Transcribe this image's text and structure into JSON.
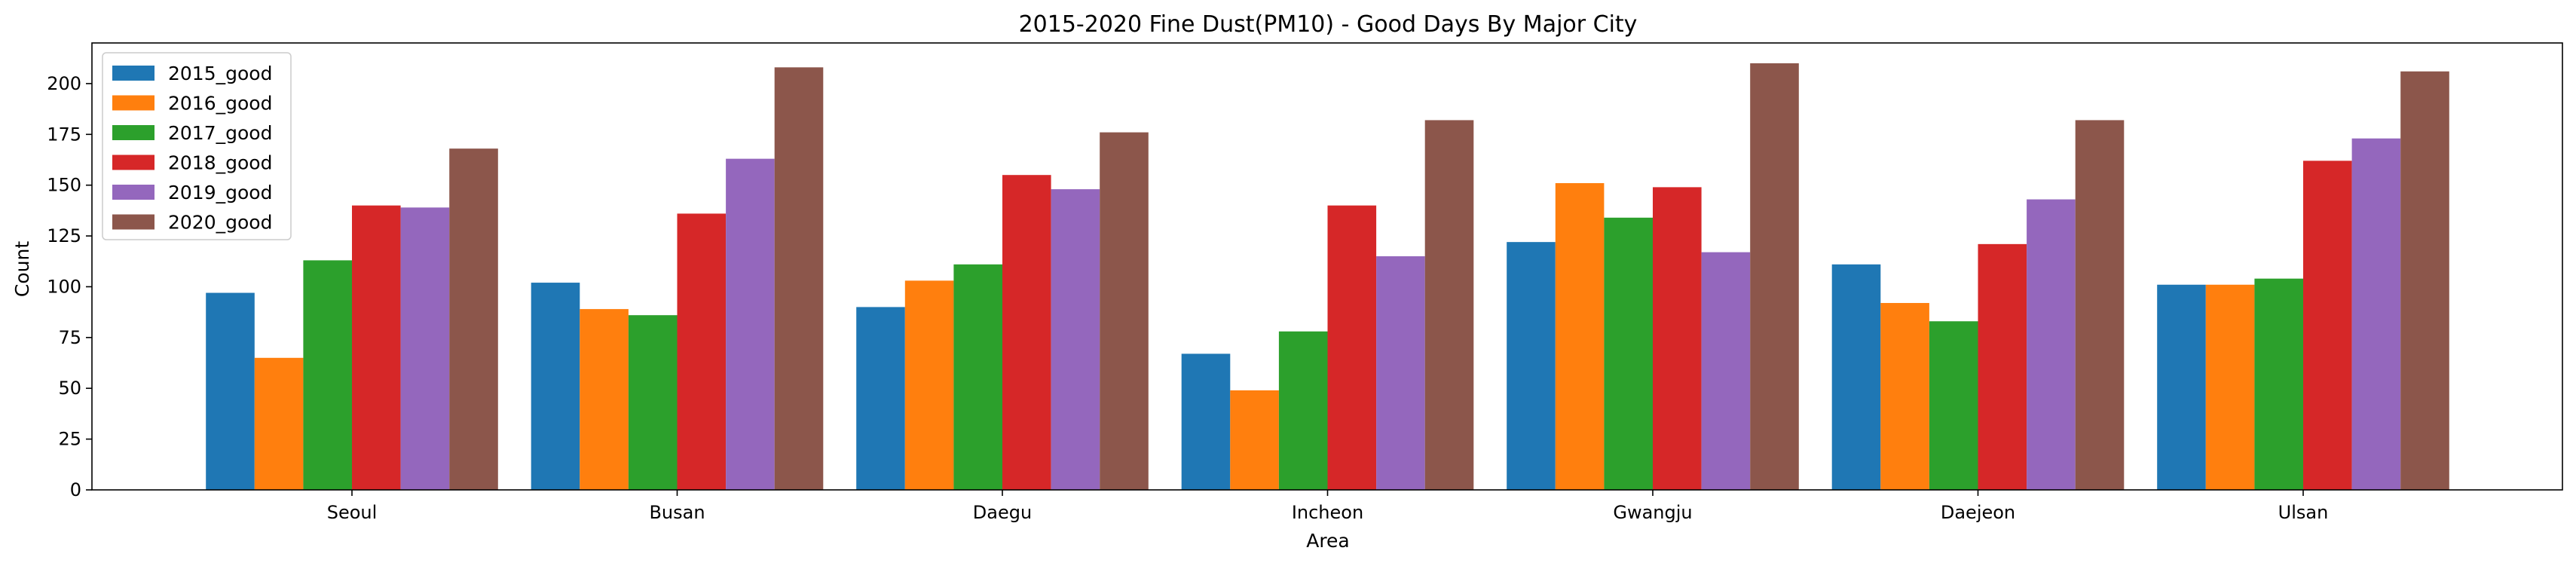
{
  "chart_data": {
    "type": "bar",
    "title": "2015-2020 Fine Dust(PM10) - Good Days By Major City",
    "xlabel": "Area",
    "ylabel": "Count",
    "ylim": [
      0,
      220
    ],
    "yticks": [
      0,
      25,
      50,
      75,
      100,
      125,
      150,
      175,
      200
    ],
    "grid": false,
    "legend_position": "top-left",
    "categories": [
      "Seoul",
      "Busan",
      "Daegu",
      "Incheon",
      "Gwangju",
      "Daejeon",
      "Ulsan"
    ],
    "series": [
      {
        "name": "2015_good",
        "color": "#1f77b4",
        "values": [
          97,
          102,
          90,
          67,
          122,
          111,
          101
        ]
      },
      {
        "name": "2016_good",
        "color": "#ff7f0e",
        "values": [
          65,
          89,
          103,
          49,
          151,
          92,
          101
        ]
      },
      {
        "name": "2017_good",
        "color": "#2ca02c",
        "values": [
          113,
          86,
          111,
          78,
          134,
          83,
          104
        ]
      },
      {
        "name": "2018_good",
        "color": "#d62728",
        "values": [
          140,
          136,
          155,
          140,
          149,
          121,
          162
        ]
      },
      {
        "name": "2019_good",
        "color": "#9467bd",
        "values": [
          139,
          163,
          148,
          115,
          117,
          143,
          173
        ]
      },
      {
        "name": "2020_good",
        "color": "#8c564b",
        "values": [
          168,
          208,
          176,
          182,
          210,
          182,
          206
        ]
      }
    ]
  }
}
